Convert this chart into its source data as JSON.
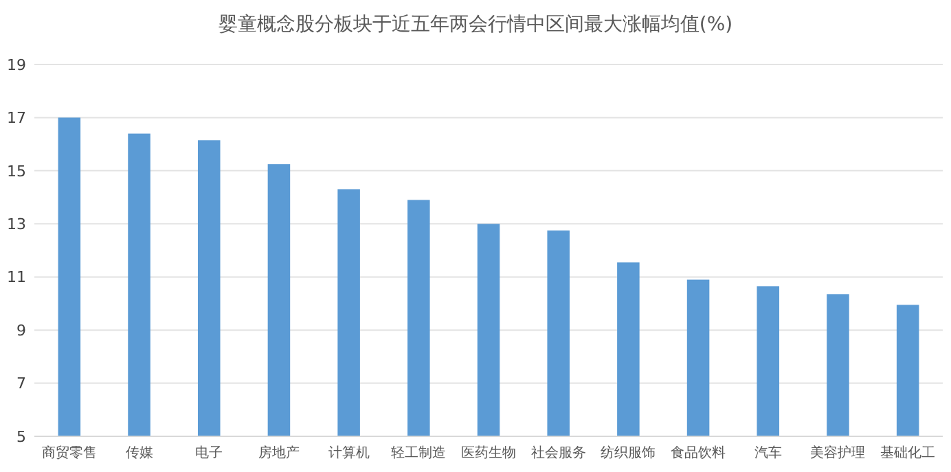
{
  "chart_data": {
    "type": "bar",
    "title": "婴童概念股分板块于近五年两会行情中区间最大涨幅均值(%)",
    "categories": [
      "商贸零售",
      "传媒",
      "电子",
      "房地产",
      "计算机",
      "轻工制造",
      "医药生物",
      "社会服务",
      "纺织服饰",
      "食品饮料",
      "汽车",
      "美容护理",
      "基础化工"
    ],
    "values": [
      17.0,
      16.4,
      16.15,
      15.25,
      14.3,
      13.9,
      13.0,
      12.75,
      11.55,
      10.9,
      10.65,
      10.35,
      9.95
    ],
    "color": "#5b9bd5",
    "ylim": [
      5,
      19
    ],
    "yticks": [
      5,
      7,
      9,
      11,
      13,
      15,
      17,
      19
    ],
    "grid": "y"
  }
}
